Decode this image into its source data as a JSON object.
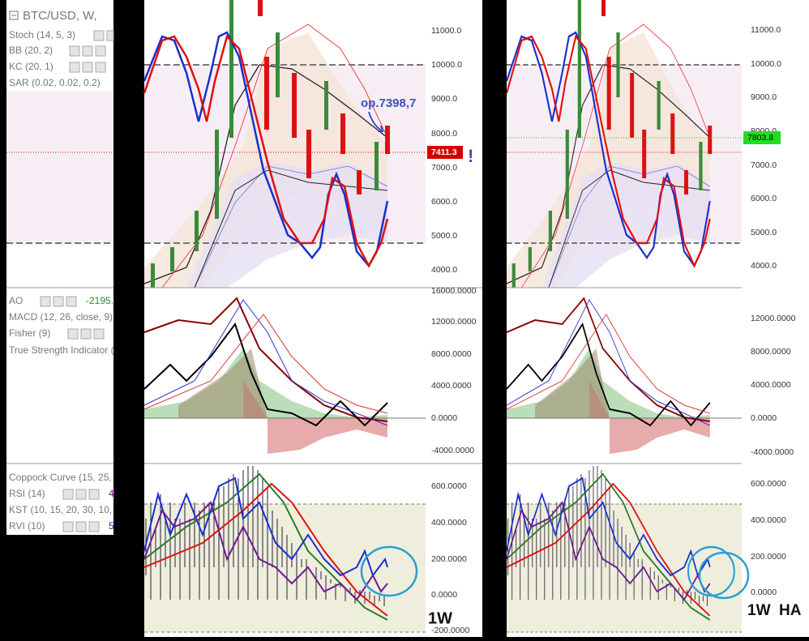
{
  "sidebar": {
    "title": "BTC/USD, W, ",
    "top_indicators": [
      "Stoch (14, 5, 3)",
      "BB (20, 2)",
      "KC (20, 1)",
      "SAR (0.02, 0.02, 0.2)"
    ],
    "middle_indicators": [
      "AO",
      "MACD (12, 26, close, 9)",
      "Fisher (9)",
      "True Strength Indicator ("
    ],
    "ao_value": "-2195.",
    "bottom_indicators": [
      "Coppock Curve (15, 25,",
      "RSI (14)",
      "KST (10, 15, 20, 30, 10,",
      "RVI (10)"
    ],
    "rsi_value": "4",
    "rvi_value": "5"
  },
  "left_chart": {
    "price_axis": [
      "11000.0",
      "10000.0",
      "9000.0",
      "8000.0",
      "7000.0",
      "6000.0",
      "5000.0",
      "4000.0"
    ],
    "price_label": "7411.3",
    "annotation": "op.7398,7",
    "alert": "!",
    "oscillator_axis": [
      "16000.0000",
      "12000.0000",
      "8000.0000",
      "4000.0000",
      "0.0000",
      "-4000.0000"
    ],
    "lower_axis": [
      "600.0000",
      "400.0000",
      "200.0000",
      "0.0000",
      "-200.0000"
    ],
    "timeframe": "1W"
  },
  "right_chart": {
    "price_axis": [
      "11000.0",
      "10000.0",
      "9000.0",
      "8000.0",
      "7000.0",
      "6000.0",
      "5000.0",
      "4000.0"
    ],
    "price_label": "7803.8",
    "oscillator_axis": [
      "12000.0000",
      "8000.0000",
      "4000.0000",
      "0.0000",
      "-4000.0000"
    ],
    "lower_axis": [
      "600.0000",
      "400.0000",
      "200.0000",
      "0.0000"
    ],
    "timeframe": "1W  HA"
  }
}
